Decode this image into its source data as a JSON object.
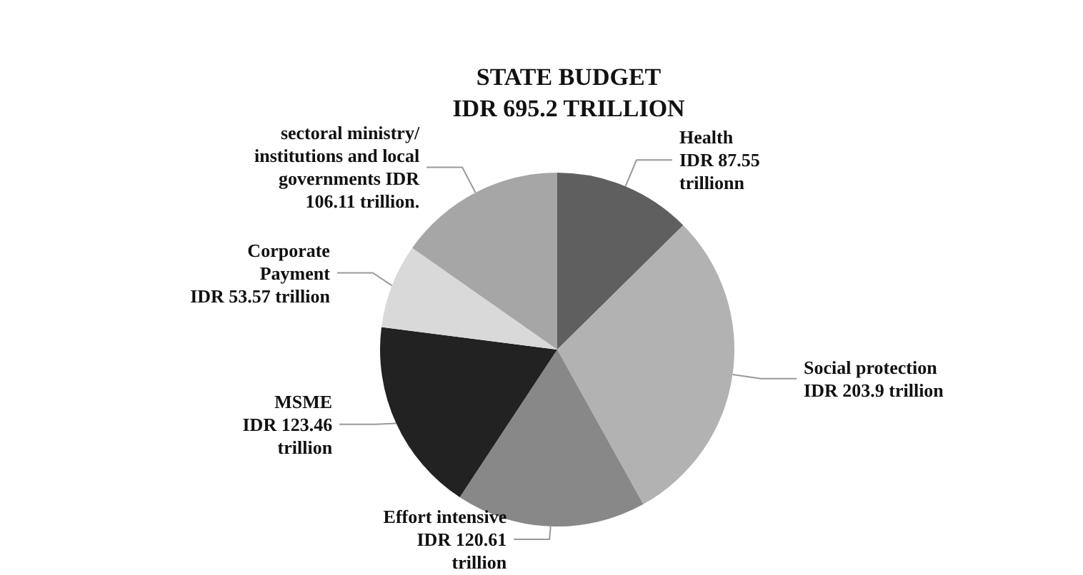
{
  "chart_data": {
    "type": "pie",
    "title": "STATE BUDGET\nIDR 695.2 TRILLION",
    "categories": [
      "Health\nIDR 87.55\ntrillionn",
      "Social protection\nIDR 203.9 trillion",
      "Effort intensive\nIDR 120.61\ntrillion",
      "MSME\nIDR 123.46\ntrillion",
      "Corporate\nPayment\nIDR 53.57 trillion",
      "sectoral ministry/\ninstitutions and local\ngovernments IDR\n106.11 trillion."
    ],
    "values": [
      87.55,
      203.9,
      120.61,
      123.46,
      53.57,
      106.11
    ],
    "colors": [
      "#5f5f5f",
      "#b2b2b2",
      "#888888",
      "#222222",
      "#d9d9d9",
      "#a6a6a6"
    ],
    "legend": false
  }
}
